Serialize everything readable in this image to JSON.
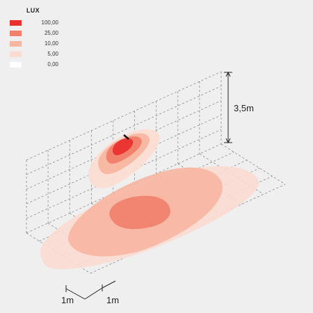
{
  "legend": {
    "title": "LUX",
    "items": [
      {
        "value": "100,00",
        "color": "#e8312f"
      },
      {
        "value": "25,00",
        "color": "#f0806c"
      },
      {
        "value": "10,00",
        "color": "#f7b6a1"
      },
      {
        "value": "5,00",
        "color": "#fbdcd2"
      },
      {
        "value": "0,00",
        "color": "#ffffff"
      }
    ]
  },
  "dimensions": {
    "height_label": "3,5m",
    "grid_spacing_label_left": "1m",
    "grid_spacing_label_right": "1m"
  }
}
